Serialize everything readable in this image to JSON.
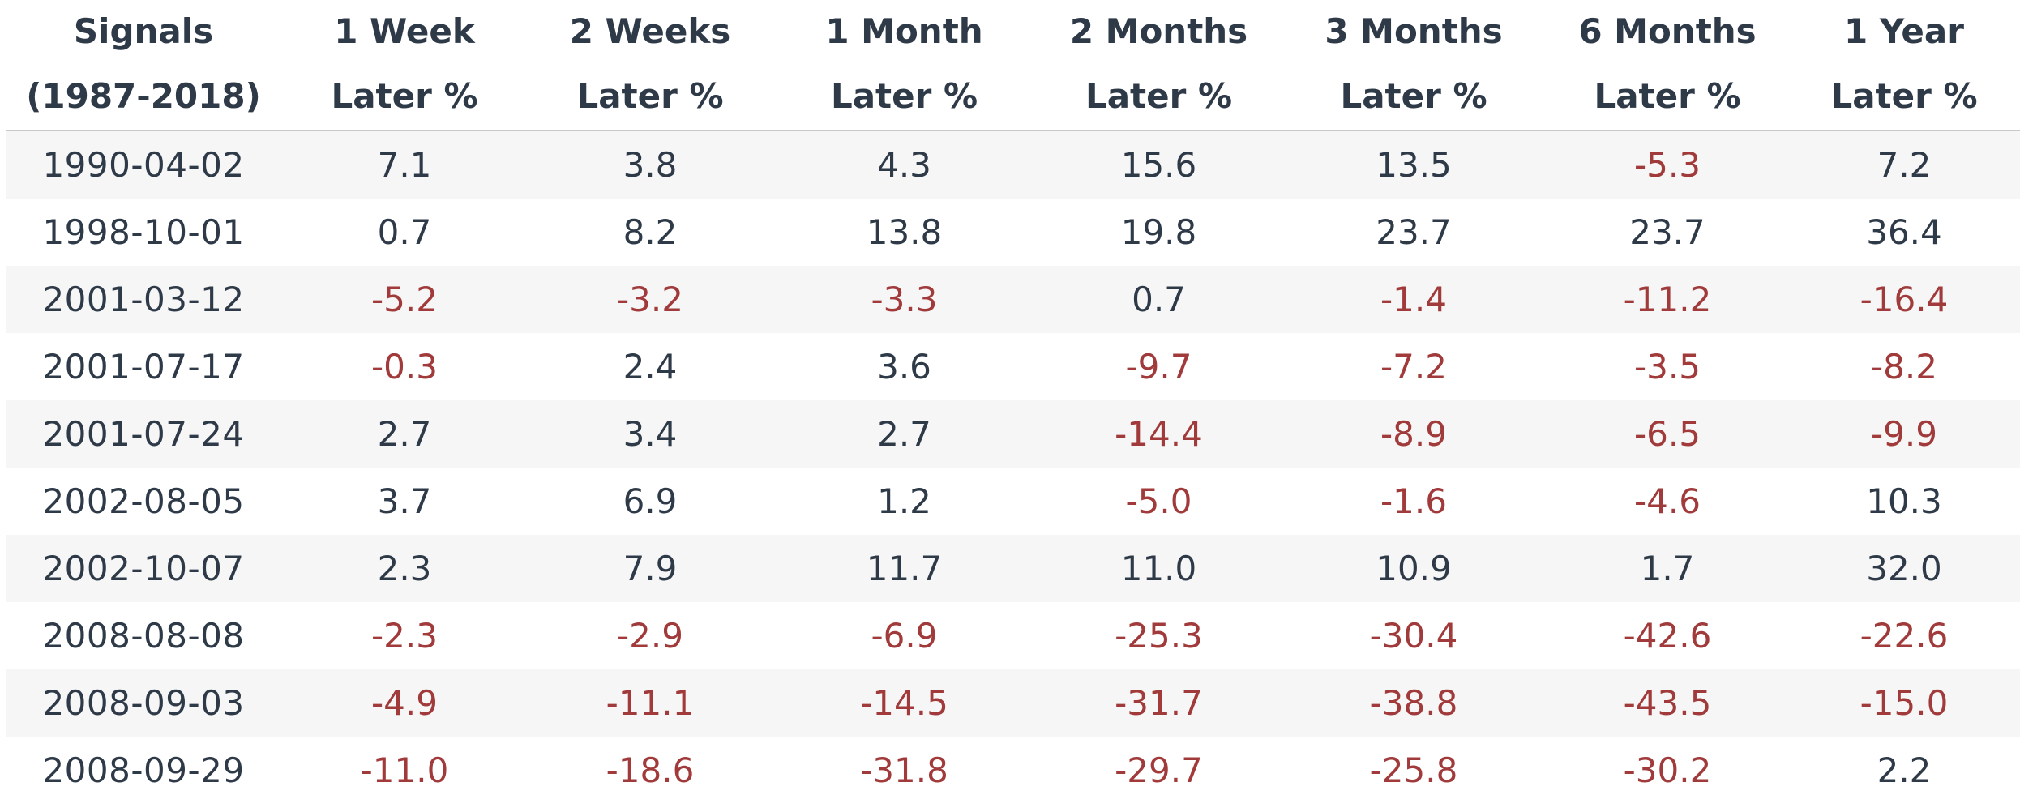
{
  "table": {
    "header_line1": [
      "Signals",
      "1 Week",
      "2 Weeks",
      "1 Month",
      "2 Months",
      "3 Months",
      "6 Months",
      "1 Year"
    ],
    "header_line2": [
      "(1987-2018)",
      "Later %",
      "Later %",
      "Later %",
      "Later %",
      "Later %",
      "Later %",
      "Later %"
    ],
    "rows": [
      [
        "1990-04-02",
        "7.1",
        "3.8",
        "4.3",
        "15.6",
        "13.5",
        "-5.3",
        "7.2"
      ],
      [
        "1998-10-01",
        "0.7",
        "8.2",
        "13.8",
        "19.8",
        "23.7",
        "23.7",
        "36.4"
      ],
      [
        "2001-03-12",
        "-5.2",
        "-3.2",
        "-3.3",
        "0.7",
        "-1.4",
        "-11.2",
        "-16.4"
      ],
      [
        "2001-07-17",
        "-0.3",
        "2.4",
        "3.6",
        "-9.7",
        "-7.2",
        "-3.5",
        "-8.2"
      ],
      [
        "2001-07-24",
        "2.7",
        "3.4",
        "2.7",
        "-14.4",
        "-8.9",
        "-6.5",
        "-9.9"
      ],
      [
        "2002-08-05",
        "3.7",
        "6.9",
        "1.2",
        "-5.0",
        "-1.6",
        "-4.6",
        "10.3"
      ],
      [
        "2002-10-07",
        "2.3",
        "7.9",
        "11.7",
        "11.0",
        "10.9",
        "1.7",
        "32.0"
      ],
      [
        "2008-08-08",
        "-2.3",
        "-2.9",
        "-6.9",
        "-25.3",
        "-30.4",
        "-42.6",
        "-22.6"
      ],
      [
        "2008-09-03",
        "-4.9",
        "-11.1",
        "-14.5",
        "-31.7",
        "-38.8",
        "-43.5",
        "-15.0"
      ],
      [
        "2008-09-29",
        "-11.0",
        "-18.6",
        "-31.8",
        "-29.7",
        "-25.8",
        "-30.2",
        "2.2"
      ]
    ]
  },
  "colors": {
    "text": "#2e3a48",
    "negative": "#a13a3a",
    "row_stripe": "#f6f6f6",
    "header_rule": "#c9c9c9"
  }
}
